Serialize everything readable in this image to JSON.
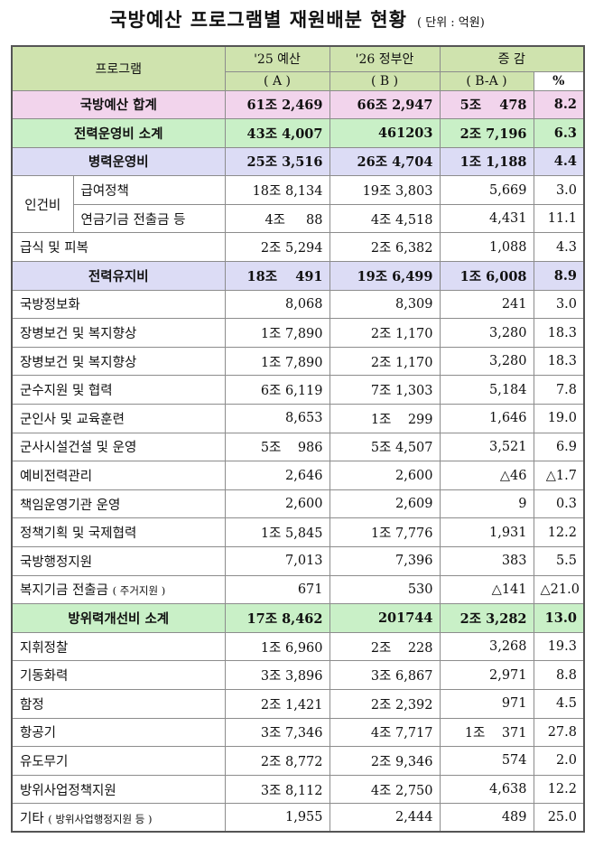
{
  "title": "국방예산 프로그램별 재원배분 현황",
  "unit": "( 단위 : 억원)",
  "headers": {
    "program": "프로그램",
    "col_a": "'25 예산",
    "col_a_sub": "( A )",
    "col_b": "'26 정부안",
    "col_b_sub": "( B )",
    "col_c": "증 감",
    "col_c_sub": "( B-A )",
    "col_pct": "%"
  },
  "rows": [
    {
      "name": "국방예산 합계",
      "a": "61조 2,469",
      "b": "66조 2,947",
      "c": "5조    478",
      "pct": "8.2"
    },
    {
      "name": "전력운영비 소계",
      "a": "43조 4,007",
      "b": "461203",
      "c": "2조 7,196",
      "pct": "6.3"
    },
    {
      "name": "병력운영비",
      "a": "25조 3,516",
      "b": "26조 4,704",
      "c": "1조 1,188",
      "pct": "4.4"
    },
    {
      "group": "인건비",
      "name": "급여정책",
      "a": "18조 8,134",
      "b": "19조 3,803",
      "c": "5,669",
      "pct": "3.0"
    },
    {
      "name": "연금기금 전출금 등",
      "a": "4조     88",
      "b": "4조 4,518",
      "c": "4,431",
      "pct": "11.1"
    },
    {
      "name": "급식 및 피복",
      "a": "2조 5,294",
      "b": "2조 6,382",
      "c": "1,088",
      "pct": "4.3"
    },
    {
      "name": "전력유지비",
      "a": "18조    491",
      "b": "19조 6,499",
      "c": "1조 6,008",
      "pct": "8.9"
    },
    {
      "name": "국방정보화",
      "a": "8,068",
      "b": "8,309",
      "c": "241",
      "pct": "3.0"
    },
    {
      "name": "장병보건 및 복지향상",
      "a": "1조 7,890",
      "b": "2조 1,170",
      "c": "3,280",
      "pct": "18.3"
    },
    {
      "name": "장병보건 및 복지향상",
      "a": "1조 7,890",
      "b": "2조 1,170",
      "c": "3,280",
      "pct": "18.3"
    },
    {
      "name": "군수지원 및 협력",
      "a": "6조 6,119",
      "b": "7조 1,303",
      "c": "5,184",
      "pct": "7.8"
    },
    {
      "name": "군인사 및 교육훈련",
      "a": "8,653",
      "b": "1조    299",
      "c": "1,646",
      "pct": "19.0"
    },
    {
      "name": "군사시설건설 및 운영",
      "a": "5조    986",
      "b": "5조 4,507",
      "c": "3,521",
      "pct": "6.9"
    },
    {
      "name": "예비전력관리",
      "a": "2,646",
      "b": "2,600",
      "c": "△46",
      "pct": "△1.7"
    },
    {
      "name": "책임운영기관 운영",
      "a": "2,600",
      "b": "2,609",
      "c": "9",
      "pct": "0.3"
    },
    {
      "name": "정책기획 및 국제협력",
      "a": "1조 5,845",
      "b": "1조 7,776",
      "c": "1,931",
      "pct": "12.2"
    },
    {
      "name": "국방행정지원",
      "a": "7,013",
      "b": "7,396",
      "c": "383",
      "pct": "5.5"
    },
    {
      "name": "복지기금 전출금",
      "name_sub": "( 주거지원 )",
      "a": "671",
      "b": "530",
      "c": "△141",
      "pct": "△21.0"
    },
    {
      "name": "방위력개선비 소계",
      "a": "17조 8,462",
      "b": "201744",
      "c": "2조 3,282",
      "pct": "13.0"
    },
    {
      "name": "지휘정찰",
      "a": "1조 6,960",
      "b": "2조    228",
      "c": "3,268",
      "pct": "19.3"
    },
    {
      "name": "기동화력",
      "a": "3조 3,896",
      "b": "3조 6,867",
      "c": "2,971",
      "pct": "8.8"
    },
    {
      "name": "함정",
      "a": "2조 1,421",
      "b": "2조 2,392",
      "c": "971",
      "pct": "4.5"
    },
    {
      "name": "항공기",
      "a": "3조 7,346",
      "b": "4조 7,717",
      "c": "1조    371",
      "pct": "27.8"
    },
    {
      "name": "유도무기",
      "a": "2조 8,772",
      "b": "2조 9,346",
      "c": "574",
      "pct": "2.0"
    },
    {
      "name": "방위사업정책지원",
      "a": "3조 8,112",
      "b": "4조 2,750",
      "c": "4,638",
      "pct": "12.2"
    },
    {
      "name": "기타",
      "name_sub": "( 방위사업행정지원 등 )",
      "a": "1,955",
      "b": "2,444",
      "c": "489",
      "pct": "25.0"
    }
  ],
  "colors": {
    "header_bg": "#cfe3ae",
    "total_bg": "#f2d4ec",
    "subtotal_bg": "#c9f0c7",
    "section_bg": "#dcdcf5"
  }
}
